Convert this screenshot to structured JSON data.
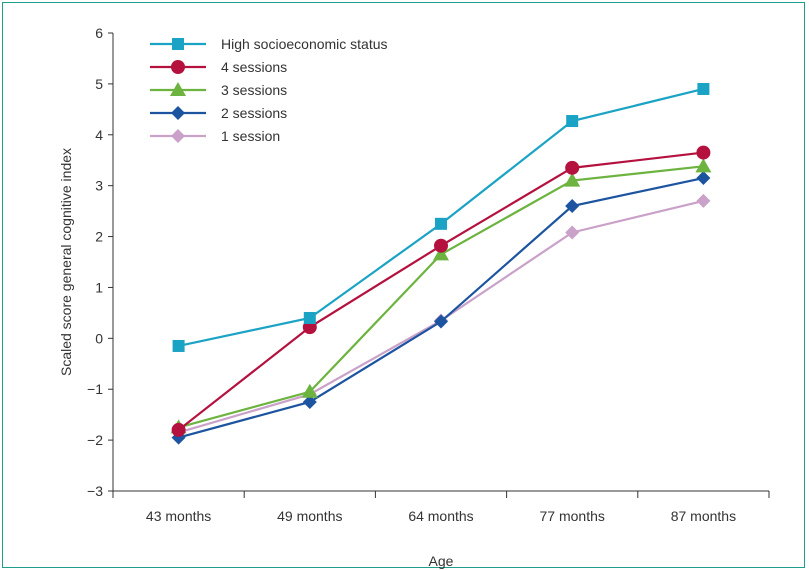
{
  "chart_data": {
    "type": "line",
    "title": "",
    "xlabel": "Age",
    "ylabel": "Scaled score general cognitive index",
    "categories": [
      "43 months",
      "49 months",
      "64 months",
      "77 months",
      "87 months"
    ],
    "ylim": [
      -3,
      6
    ],
    "yticks": [
      "6",
      "5",
      "4",
      "3",
      "2",
      "1",
      "0",
      "−1",
      "−2",
      "−3"
    ],
    "ytick_values": [
      6,
      5,
      4,
      3,
      2,
      1,
      0,
      -1,
      -2,
      -3
    ],
    "grid": false,
    "legend": "top-left",
    "series": [
      {
        "name": "High socioeconomic status",
        "marker": "square",
        "color": "#1aa3c4",
        "values": [
          -0.15,
          0.4,
          2.25,
          4.27,
          4.9
        ]
      },
      {
        "name": "4 sessions",
        "marker": "circle",
        "color": "#b5113f",
        "values": [
          -1.8,
          0.22,
          1.82,
          3.35,
          3.65
        ]
      },
      {
        "name": "3 sessions",
        "marker": "triangle",
        "color": "#6cb33f",
        "values": [
          -1.75,
          -1.05,
          1.65,
          3.1,
          3.38
        ]
      },
      {
        "name": "2 sessions",
        "marker": "diamond",
        "color": "#1c54a0",
        "values": [
          -1.95,
          -1.25,
          0.33,
          2.6,
          3.15
        ]
      },
      {
        "name": "1 session",
        "marker": "diamond",
        "color": "#c9a1c9",
        "values": [
          -1.85,
          -1.1,
          0.35,
          2.08,
          2.7
        ]
      }
    ]
  }
}
